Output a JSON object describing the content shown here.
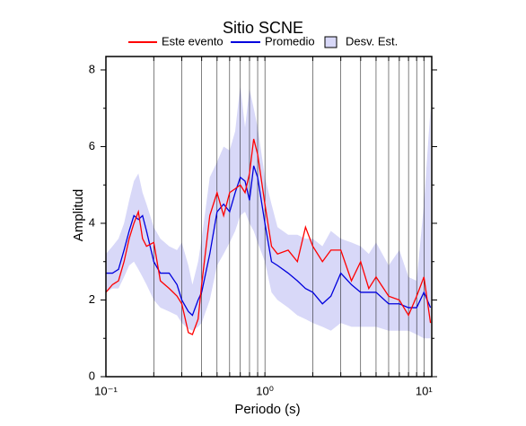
{
  "chart_data": {
    "type": "line",
    "title": "Sitio SCNE",
    "x_label": "Periodo (s)",
    "y_label": "Amplitud",
    "log_x": true,
    "x_grid": true,
    "xlim": [
      0.1,
      11.2
    ],
    "ylim": [
      0,
      8.35
    ],
    "xticks": [
      {
        "value": 0.1,
        "label": "10⁻¹"
      },
      {
        "value": 1,
        "label": "10⁰"
      },
      {
        "value": 10,
        "label": "10¹"
      }
    ],
    "x_minor_ticks": [
      0.2,
      0.3,
      0.4,
      0.5,
      0.6,
      0.7,
      0.8,
      0.9,
      2,
      3,
      4,
      5,
      6,
      7,
      8,
      9
    ],
    "yticks": [
      0,
      2,
      4,
      6,
      8
    ],
    "y_minor_ticks": [
      1,
      3,
      5,
      7
    ],
    "x": [
      0.1,
      0.11,
      0.12,
      0.13,
      0.14,
      0.15,
      0.16,
      0.17,
      0.18,
      0.2,
      0.22,
      0.25,
      0.28,
      0.3,
      0.33,
      0.35,
      0.38,
      0.4,
      0.45,
      0.5,
      0.55,
      0.6,
      0.65,
      0.7,
      0.75,
      0.8,
      0.85,
      0.9,
      1.0,
      1.1,
      1.2,
      1.4,
      1.6,
      1.8,
      2.0,
      2.3,
      2.6,
      3.0,
      3.5,
      4.0,
      4.5,
      5.0,
      6.0,
      7.0,
      8.0,
      9.0,
      10.0,
      11.0
    ],
    "series": [
      {
        "name": "Este evento",
        "color": "#ff0000",
        "values": [
          2.2,
          2.4,
          2.5,
          3.0,
          3.6,
          4.0,
          4.3,
          3.6,
          3.4,
          3.5,
          2.5,
          2.3,
          2.1,
          1.9,
          1.15,
          1.1,
          1.5,
          2.4,
          4.2,
          4.8,
          4.2,
          4.8,
          4.9,
          5.0,
          4.8,
          5.3,
          6.2,
          5.8,
          4.5,
          3.4,
          3.2,
          3.3,
          3.0,
          3.9,
          3.4,
          3.0,
          3.3,
          3.3,
          2.5,
          3.0,
          2.3,
          2.6,
          2.1,
          2.0,
          1.6,
          2.1,
          2.6,
          1.4
        ]
      },
      {
        "name": "Promedio",
        "color": "#0000dd",
        "values": [
          2.7,
          2.7,
          2.8,
          3.3,
          3.8,
          4.2,
          4.1,
          4.2,
          3.8,
          3.0,
          2.7,
          2.7,
          2.4,
          2.0,
          1.7,
          1.6,
          2.0,
          2.2,
          3.2,
          4.3,
          4.5,
          4.3,
          4.8,
          5.2,
          5.1,
          4.6,
          5.5,
          5.2,
          4.0,
          3.0,
          2.9,
          2.7,
          2.5,
          2.3,
          2.2,
          1.9,
          2.1,
          2.7,
          2.4,
          2.2,
          2.2,
          2.2,
          1.9,
          1.9,
          1.8,
          1.8,
          2.2,
          1.8
        ]
      },
      {
        "name": "Desv. Est.",
        "color": "#d8d8f8",
        "upper": [
          3.2,
          3.4,
          3.6,
          4.0,
          4.6,
          5.1,
          5.3,
          4.8,
          4.5,
          3.9,
          3.6,
          3.4,
          3.3,
          3.5,
          2.9,
          2.4,
          3.0,
          3.6,
          5.2,
          5.6,
          6.0,
          5.9,
          6.4,
          7.6,
          6.5,
          7.5,
          7.0,
          6.5,
          5.2,
          4.5,
          3.9,
          3.7,
          3.7,
          3.6,
          3.6,
          3.4,
          3.8,
          3.6,
          3.5,
          3.4,
          3.2,
          3.5,
          2.9,
          3.3,
          2.6,
          2.5,
          4.5,
          7.0
        ]
      },
      {
        "name": "lower",
        "color": "#d8d8f8",
        "values": [
          2.2,
          2.3,
          2.3,
          2.6,
          2.9,
          3.0,
          2.8,
          2.6,
          2.4,
          2.0,
          1.8,
          1.7,
          1.6,
          1.4,
          1.25,
          1.2,
          1.3,
          1.4,
          2.0,
          2.9,
          3.2,
          3.5,
          3.8,
          4.2,
          4.3,
          4.0,
          3.8,
          3.5,
          3.0,
          2.2,
          2.0,
          1.8,
          1.6,
          1.5,
          1.4,
          1.3,
          1.2,
          1.4,
          1.3,
          1.3,
          1.3,
          1.3,
          1.2,
          1.2,
          1.2,
          1.1,
          1.0,
          1.0
        ]
      }
    ],
    "legend": "top"
  }
}
